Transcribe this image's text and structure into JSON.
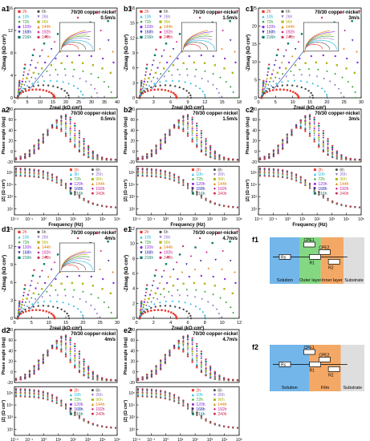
{
  "panels": [
    {
      "id": "a1",
      "type": "nyquist",
      "tag": "a1",
      "title": "70/30 copper-nickel",
      "speed": "0.5m/s",
      "xmax": 40,
      "ymax": 16,
      "xticks": [
        0,
        5,
        10,
        15,
        20,
        25,
        30,
        35,
        40
      ],
      "yticks": [
        0,
        4,
        8,
        12,
        16
      ],
      "ylabel": "-Zimag (kΩ·cm²)",
      "xlabel": "Zreal (kΩ·cm²)",
      "inset": true,
      "legend": [
        "2h",
        "6h",
        "10h",
        "26h",
        "72h",
        "96h",
        "120h",
        "144h",
        "168h",
        "192h",
        "216h",
        "240h"
      ]
    },
    {
      "id": "b1",
      "type": "nyquist",
      "tag": "b1",
      "title": "70/30 copper-nickel",
      "speed": "1.5m/s",
      "xmax": 18,
      "ymax": 18,
      "xticks": [
        0,
        3,
        6,
        9,
        12,
        15,
        18
      ],
      "yticks": [
        0,
        3,
        6,
        9,
        12,
        15,
        18
      ],
      "ylabel": "-Zimag (kΩ·cm²)",
      "xlabel": "Zreal (kΩ·cm²)",
      "inset": true,
      "legend": [
        "2h",
        "6h",
        "10h",
        "26h",
        "72h",
        "96h",
        "120h",
        "144h",
        "168h",
        "192h",
        "216h",
        "240h"
      ]
    },
    {
      "id": "c1",
      "type": "nyquist",
      "tag": "c1",
      "title": "70/30 copper-nickel",
      "speed": "3m/s",
      "xmax": 30,
      "ymax": 25,
      "xticks": [
        0,
        5,
        10,
        15,
        20,
        25,
        30
      ],
      "yticks": [
        0,
        5,
        10,
        15,
        20,
        25
      ],
      "ylabel": "-Zimag (kΩ·cm²)",
      "xlabel": "Zreal (kΩ·cm²)",
      "inset": true,
      "legend": [
        "2h",
        "6h",
        "10h",
        "26h",
        "72h",
        "96h",
        "120h",
        "144h",
        "168h",
        "192h",
        "216h",
        "240h"
      ]
    },
    {
      "id": "a2",
      "type": "bode",
      "tag": "a2",
      "title": "70/30 copper-nickel",
      "speed": "0.5m/s",
      "phase_ylabel": "Phase angle (deg)",
      "mod_ylabel": "|Z| (Ω·cm²)",
      "xlabel": "Frequency (Hz)",
      "phase_yticks": [
        -20,
        0,
        20,
        40,
        60,
        80
      ],
      "legend": [
        "1h",
        "6h",
        "9h",
        "25h",
        "72h",
        "96h",
        "120h",
        "144h",
        "168h",
        "192h",
        "216h",
        "240h"
      ]
    },
    {
      "id": "b2",
      "type": "bode",
      "tag": "b2",
      "title": "70/30 copper-nickel",
      "speed": "1.5m/s",
      "phase_ylabel": "Phase angle (deg)",
      "mod_ylabel": "|Z| (Ω·cm²)",
      "xlabel": "Frequency (Hz)",
      "phase_yticks": [
        -20,
        0,
        20,
        40,
        60,
        80
      ],
      "legend": [
        "2h",
        "6h",
        "10h",
        "26h",
        "72h",
        "96h",
        "120h",
        "144h",
        "168h",
        "192h",
        "216h",
        "240h"
      ]
    },
    {
      "id": "c2",
      "type": "bode",
      "tag": "c2",
      "title": "70/30 copper-nickel",
      "speed": "3m/s",
      "phase_ylabel": "Phase angle (deg)",
      "mod_ylabel": "|Z| (Ω·cm²)",
      "xlabel": "Frequency (Hz)",
      "phase_yticks": [
        -20,
        0,
        20,
        40,
        60,
        80
      ],
      "legend": [
        "2h",
        "6h",
        "10h",
        "26h",
        "72h",
        "96h",
        "120h",
        "144h",
        "168h",
        "192h",
        "216h",
        "240h"
      ]
    },
    {
      "id": "d1",
      "type": "nyquist",
      "tag": "d1",
      "title": "70/30 copper-nickel",
      "speed": "4m/s",
      "xmax": 30,
      "ymax": 15,
      "xticks": [
        0,
        5,
        10,
        15,
        20,
        25,
        30
      ],
      "yticks": [
        0,
        3,
        6,
        9,
        12,
        15
      ],
      "ylabel": "-Zimag (kΩ·cm²)",
      "xlabel": "Zreal (kΩ·cm²)",
      "inset": true,
      "legend": [
        "2h",
        "6h",
        "10h",
        "26h",
        "72h",
        "96h",
        "120h",
        "144h",
        "168h",
        "192h",
        "216h",
        "240h"
      ]
    },
    {
      "id": "e1",
      "type": "nyquist",
      "tag": "e1",
      "title": "70/30 copper-nickel",
      "speed": "4.7m/s",
      "xmax": 12,
      "ymax": 12,
      "xticks": [
        0,
        2,
        4,
        6,
        8,
        10,
        12
      ],
      "yticks": [
        0,
        2,
        4,
        6,
        8,
        10,
        12
      ],
      "ylabel": "-Zimag (kΩ·cm²)",
      "xlabel": "Zreal (kΩ·cm²)",
      "inset": false,
      "legend": [
        "2h",
        "6h",
        "10h",
        "26h",
        "72h",
        "96h",
        "120h",
        "144h",
        "168h",
        "192h",
        "216h",
        "240h"
      ]
    },
    {
      "id": "d2",
      "type": "bode",
      "tag": "d2",
      "title": "70/30 copper-nickel",
      "speed": "4m/s",
      "phase_ylabel": "Phase angle (deg)",
      "mod_ylabel": "|Z| (Ω·cm²)",
      "xlabel": "Frequency (Hz)",
      "phase_yticks": [
        -20,
        0,
        20,
        40,
        60,
        80
      ],
      "legend": [
        "2h",
        "6h",
        "10h",
        "26h",
        "72h",
        "96h",
        "120h",
        "144h",
        "168h",
        "192h",
        "216h",
        "240h"
      ]
    },
    {
      "id": "e2",
      "type": "bode",
      "tag": "e2",
      "title": "70/30 copper-nickel",
      "speed": "4.7m/s",
      "phase_ylabel": "Phase angle (deg)",
      "mod_ylabel": "|Z| (Ω·cm²)",
      "xlabel": "Frequency (Hz)",
      "phase_yticks": [
        -20,
        0,
        20,
        40,
        60,
        80
      ],
      "legend": [
        "2h",
        "6h",
        "10h",
        "26h",
        "72h",
        "96h",
        "120h",
        "144h",
        "168h",
        "192h",
        "216h",
        "240h"
      ]
    }
  ],
  "freq_ticks": [
    "10⁻²",
    "10⁻¹",
    "10⁰",
    "10¹",
    "10²",
    "10³",
    "10⁴",
    "10⁵"
  ],
  "mod_ticks": [
    "10²",
    "10³",
    "10⁴",
    "10⁵"
  ],
  "series_colors": [
    "#e8362c",
    "#4a4a4a",
    "#16b8e0",
    "#8e6bc8",
    "#2ca02c",
    "#b5b51a",
    "#8a2be2",
    "#e07b00",
    "#1a1aa8",
    "#c61a8a",
    "#0a7a6a",
    "#cc3355"
  ],
  "circuits": {
    "f1": {
      "tag": "f1",
      "regions": [
        "Solution",
        "Outer layer",
        "Inner layer",
        "Substrate"
      ],
      "elements": [
        "Rs",
        "CPE1",
        "CPE2",
        "R1",
        "R2"
      ],
      "colors": [
        "#5aa9e6",
        "#6fd16b",
        "#f2994a",
        "#d8d8d8"
      ]
    },
    "f2": {
      "tag": "f2",
      "regions": [
        "Solution",
        "Film",
        "Substrate"
      ],
      "elements": [
        "Rs",
        "CPE1",
        "CPE2",
        "R1",
        "R2"
      ],
      "colors": [
        "#5aa9e6",
        "#f2994a",
        "#d8d8d8"
      ]
    }
  },
  "chart_data": [
    {
      "type": "scatter",
      "title": "70/30 copper-nickel 0.5m/s",
      "xlabel": "Zreal (kΩ·cm²)",
      "ylabel": "-Zimag (kΩ·cm²)",
      "xlim": [
        0,
        40
      ],
      "ylim": [
        0,
        16
      ],
      "series": [
        {
          "name": "2h",
          "x": [
            1,
            3,
            5
          ],
          "y": [
            1,
            2,
            2.5
          ]
        },
        {
          "name": "72h",
          "x": [
            2,
            8,
            14,
            20
          ],
          "y": [
            3,
            6,
            7,
            6
          ]
        },
        {
          "name": "240h",
          "x": [
            2,
            10,
            20,
            30,
            37
          ],
          "y": [
            4,
            10,
            13,
            14,
            14
          ]
        }
      ]
    },
    {
      "type": "scatter",
      "title": "70/30 copper-nickel 1.5m/s",
      "xlabel": "Zreal (kΩ·cm²)",
      "ylabel": "-Zimag (kΩ·cm²)",
      "xlim": [
        0,
        18
      ],
      "ylim": [
        0,
        18
      ],
      "series": [
        {
          "name": "2h",
          "x": [
            1,
            3,
            5,
            7
          ],
          "y": [
            1,
            2,
            2.5,
            2.5
          ]
        },
        {
          "name": "240h",
          "x": [
            1,
            5,
            10,
            15,
            17
          ],
          "y": [
            3,
            6,
            7,
            7,
            6
          ]
        }
      ]
    },
    {
      "type": "scatter",
      "title": "70/30 copper-nickel 3m/s",
      "xlabel": "Zreal (kΩ·cm²)",
      "ylabel": "-Zimag (kΩ·cm²)",
      "xlim": [
        0,
        30
      ],
      "ylim": [
        0,
        25
      ],
      "series": [
        {
          "name": "2h",
          "x": [
            1,
            3,
            5
          ],
          "y": [
            1,
            2,
            2
          ]
        },
        {
          "name": "240h",
          "x": [
            1,
            5,
            10,
            18,
            24
          ],
          "y": [
            3,
            9,
            14,
            18,
            20
          ]
        }
      ]
    },
    {
      "type": "scatter",
      "title": "70/30 copper-nickel 4m/s",
      "xlabel": "Zreal (kΩ·cm²)",
      "ylabel": "-Zimag (kΩ·cm²)",
      "xlim": [
        0,
        30
      ],
      "ylim": [
        0,
        15
      ],
      "series": [
        {
          "name": "2h",
          "x": [
            1,
            3,
            5
          ],
          "y": [
            1,
            1.5,
            1.5
          ]
        },
        {
          "name": "240h",
          "x": [
            1,
            6,
            12,
            19,
            26
          ],
          "y": [
            2,
            5,
            7,
            7,
            6
          ]
        }
      ]
    },
    {
      "type": "scatter",
      "title": "70/30 copper-nickel 4.7m/s",
      "xlabel": "Zreal (kΩ·cm²)",
      "ylabel": "-Zimag (kΩ·cm²)",
      "xlim": [
        0,
        12
      ],
      "ylim": [
        0,
        12
      ],
      "series": [
        {
          "name": "2h",
          "x": [
            0.5,
            2,
            3
          ],
          "y": [
            1,
            2,
            1.5
          ]
        },
        {
          "name": "240h",
          "x": [
            1,
            4,
            7,
            9,
            11
          ],
          "y": [
            2,
            4,
            5,
            5,
            4.5
          ]
        }
      ]
    }
  ]
}
